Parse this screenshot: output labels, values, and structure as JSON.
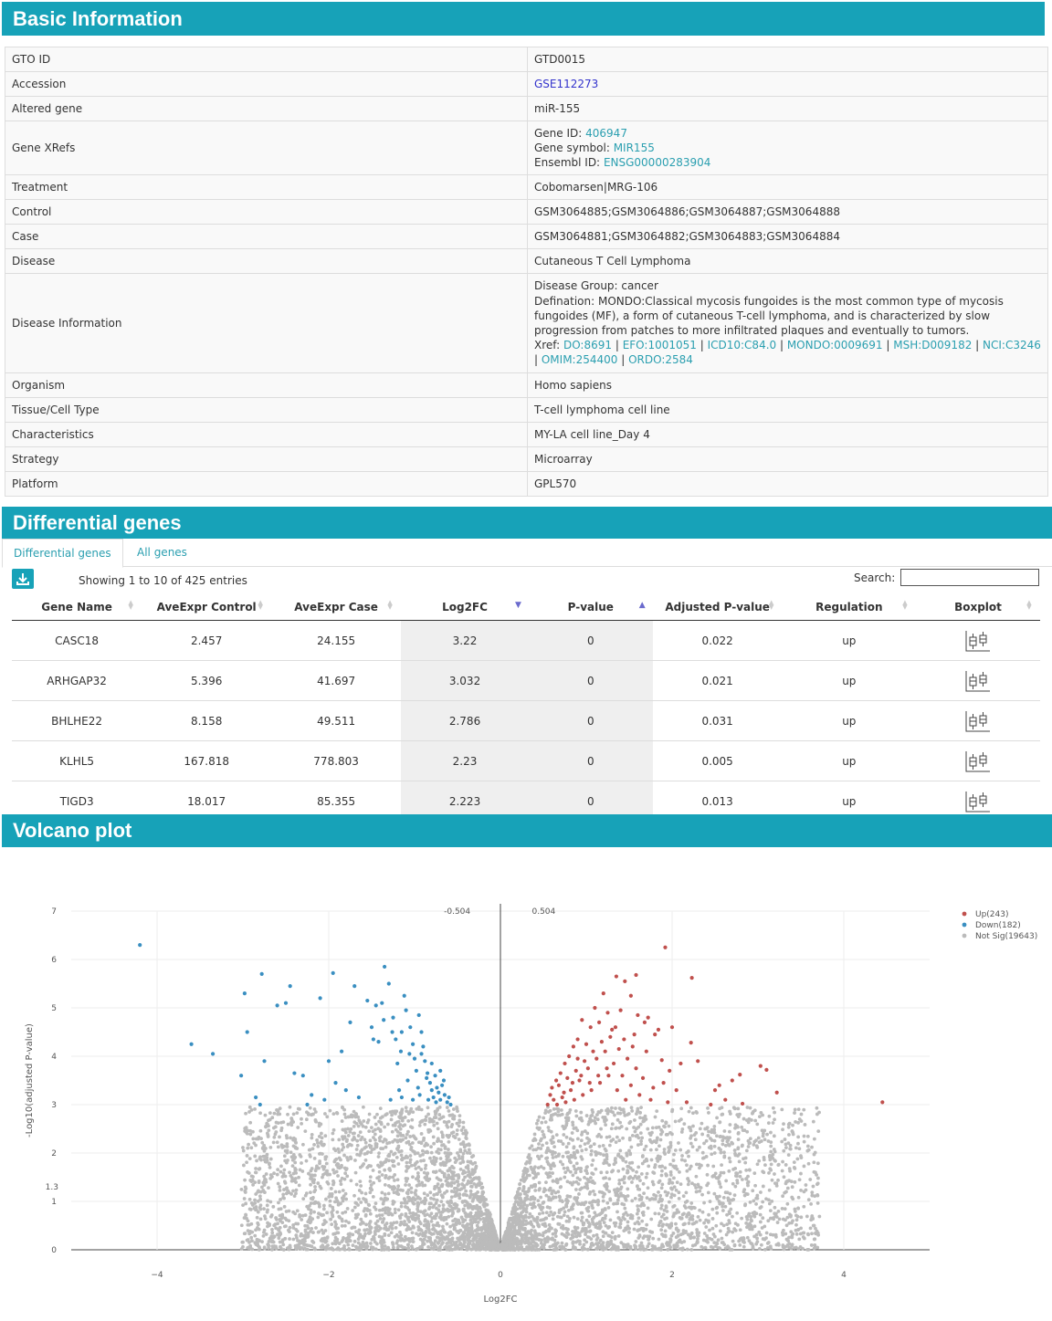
{
  "basic": {
    "title": "Basic Information",
    "rows": [
      {
        "key": "GTO ID",
        "value": "GTD0015"
      },
      {
        "key": "Accession",
        "value": "GSE112273",
        "link": true
      },
      {
        "key": "Altered gene",
        "value": "miR-155"
      },
      {
        "key": "Gene XRefs",
        "gene_id_label": "Gene ID:",
        "gene_id": "406947",
        "gene_symbol_label": "Gene symbol:",
        "gene_symbol": "MIR155",
        "ensembl_label": "Ensembl ID:",
        "ensembl": "ENSG00000283904"
      },
      {
        "key": "Treatment",
        "value": "Cobomarsen|MRG-106"
      },
      {
        "key": "Control",
        "value": "GSM3064885;GSM3064886;GSM3064887;GSM3064888"
      },
      {
        "key": "Case",
        "value": "GSM3064881;GSM3064882;GSM3064883;GSM3064884"
      },
      {
        "key": "Disease",
        "value": "Cutaneous T Cell Lymphoma"
      },
      {
        "key": "Disease Information",
        "group": "Disease Group: cancer",
        "defination_1": "Defination: MONDO:Classical mycosis fungoides is the most common type of mycosis",
        "defination_2": "fungoides (MF), a form of cutaneous T-cell lymphoma, and is characterized by slow",
        "defination_3": "progression from patches to more infiltrated plaques and eventually to tumors.",
        "xref_label": "Xref:",
        "xrefs": [
          "DO:8691",
          "EFO:1001051",
          "ICD10:C84.0",
          "MONDO:0009691",
          "MSH:D009182",
          "NCI:C3246",
          "OMIM:254400",
          "ORDO:2584"
        ]
      },
      {
        "key": "Organism",
        "value": "Homo sapiens"
      },
      {
        "key": "Tissue/Cell Type",
        "value": "T-cell lymphoma cell line"
      },
      {
        "key": "Characteristics",
        "value": "MY-LA cell line_Day 4"
      },
      {
        "key": "Strategy",
        "value": "Microarray"
      },
      {
        "key": "Platform",
        "value": "GPL570"
      }
    ]
  },
  "differential": {
    "title": "Differential genes",
    "tabs": [
      "Differential genes",
      "All genes"
    ],
    "entries_text": "Showing 1 to 10 of 425 entries",
    "search_label": "Search:",
    "search_value": "",
    "columns": [
      "Gene Name",
      "AveExpr Control",
      "AveExpr Case",
      "Log2FC",
      "P-value",
      "Adjusted P-value",
      "Regulation",
      "Boxplot"
    ],
    "rows": [
      [
        "CASC18",
        "2.457",
        "24.155",
        "3.22",
        "0",
        "0.022",
        "up"
      ],
      [
        "ARHGAP32",
        "5.396",
        "41.697",
        "3.032",
        "0",
        "0.021",
        "up"
      ],
      [
        "BHLHE22",
        "8.158",
        "49.511",
        "2.786",
        "0",
        "0.031",
        "up"
      ],
      [
        "KLHL5",
        "167.818",
        "778.803",
        "2.23",
        "0",
        "0.005",
        "up"
      ],
      [
        "TIGD3",
        "18.017",
        "85.355",
        "2.223",
        "0",
        "0.013",
        "up"
      ]
    ]
  },
  "volcano": {
    "title": "Volcano plot"
  },
  "chart_data": {
    "type": "scatter",
    "title": "",
    "xlabel": "Log2FC",
    "ylabel": "-Log10(adjusted P-value)",
    "xlim": [
      -5,
      5
    ],
    "ylim": [
      0,
      7
    ],
    "x_ticks": [
      "−4",
      "−2",
      "0",
      "2",
      "4"
    ],
    "y_ticks": [
      "0",
      "1",
      "2",
      "3",
      "4",
      "5",
      "6",
      "7"
    ],
    "thresholds": {
      "log2fc": [
        -0.504,
        0.504
      ],
      "neg_log10_p": 1.3
    },
    "threshold_labels": {
      "left": "-0.504",
      "right": "0.504",
      "p": "1.3"
    },
    "legend": {
      "position": "top-right",
      "entries": [
        "Up(243)",
        "Down(182)",
        "Not Sig(19643)"
      ]
    },
    "colors": {
      "up": "#c0504d",
      "down": "#3a8fc1",
      "not_sig": "#bbbbbb"
    },
    "series": [
      {
        "name": "Up(243)",
        "points": [
          [
            4.45,
            3.05
          ],
          [
            3.22,
            3.25
          ],
          [
            3.1,
            3.72
          ],
          [
            3.03,
            3.8
          ],
          [
            2.79,
            3.62
          ],
          [
            2.82,
            3.02
          ],
          [
            2.23,
            5.62
          ],
          [
            2.22,
            4.28
          ],
          [
            2.1,
            3.85
          ],
          [
            1.92,
            6.25
          ],
          [
            2.0,
            4.6
          ],
          [
            1.58,
            5.68
          ],
          [
            1.72,
            4.8
          ],
          [
            1.35,
            5.65
          ],
          [
            1.45,
            5.55
          ],
          [
            1.52,
            5.25
          ],
          [
            1.6,
            4.85
          ],
          [
            1.68,
            4.7
          ],
          [
            1.8,
            4.45
          ],
          [
            1.88,
            3.92
          ],
          [
            1.9,
            3.45
          ],
          [
            2.05,
            3.3
          ],
          [
            2.17,
            3.05
          ],
          [
            2.45,
            3.0
          ],
          [
            2.62,
            3.1
          ],
          [
            1.75,
            3.1
          ],
          [
            1.95,
            3.05
          ],
          [
            1.25,
            4.9
          ],
          [
            1.3,
            4.55
          ],
          [
            1.2,
            5.3
          ],
          [
            1.1,
            5.0
          ],
          [
            1.05,
            4.6
          ],
          [
            0.95,
            4.75
          ],
          [
            0.9,
            4.35
          ],
          [
            0.85,
            4.2
          ],
          [
            0.8,
            4.0
          ],
          [
            0.75,
            3.85
          ],
          [
            0.7,
            3.65
          ],
          [
            0.65,
            3.5
          ],
          [
            0.6,
            3.35
          ],
          [
            0.58,
            3.2
          ],
          [
            0.62,
            3.1
          ],
          [
            0.72,
            3.15
          ],
          [
            0.82,
            3.3
          ],
          [
            0.92,
            3.5
          ],
          [
            1.02,
            3.75
          ],
          [
            1.12,
            3.95
          ],
          [
            1.22,
            4.1
          ],
          [
            1.32,
            3.85
          ],
          [
            1.42,
            3.6
          ],
          [
            1.52,
            3.4
          ],
          [
            1.62,
            3.2
          ],
          [
            0.68,
            3.4
          ],
          [
            0.78,
            3.55
          ],
          [
            0.88,
            3.7
          ],
          [
            0.98,
            3.9
          ],
          [
            1.08,
            4.1
          ],
          [
            1.18,
            4.3
          ],
          [
            1.28,
            4.4
          ],
          [
            1.38,
            4.15
          ],
          [
            1.48,
            3.95
          ],
          [
            1.58,
            3.75
          ],
          [
            0.55,
            3.0
          ],
          [
            0.66,
            3.0
          ],
          [
            0.76,
            3.05
          ],
          [
            0.86,
            3.1
          ],
          [
            0.96,
            3.2
          ],
          [
            1.06,
            3.3
          ],
          [
            1.16,
            3.45
          ],
          [
            1.26,
            3.6
          ],
          [
            1.36,
            3.3
          ],
          [
            1.46,
            3.1
          ],
          [
            0.74,
            3.25
          ],
          [
            0.84,
            3.45
          ],
          [
            0.94,
            3.6
          ],
          [
            1.04,
            3.45
          ],
          [
            1.14,
            3.6
          ],
          [
            1.24,
            3.75
          ],
          [
            1.34,
            4.6
          ],
          [
            1.44,
            4.35
          ],
          [
            1.54,
            4.2
          ],
          [
            2.5,
            3.3
          ],
          [
            2.3,
            3.9
          ],
          [
            2.55,
            3.4
          ],
          [
            2.7,
            3.5
          ],
          [
            1.66,
            3.55
          ],
          [
            1.7,
            4.1
          ],
          [
            1.84,
            4.55
          ],
          [
            1.97,
            3.7
          ],
          [
            1.78,
            3.35
          ],
          [
            0.9,
            3.95
          ],
          [
            1.0,
            4.25
          ],
          [
            1.15,
            4.7
          ],
          [
            1.4,
            4.95
          ],
          [
            1.56,
            4.45
          ]
        ]
      },
      {
        "name": "Down(182)",
        "points": [
          [
            -4.2,
            6.3
          ],
          [
            -3.6,
            4.25
          ],
          [
            -3.35,
            4.05
          ],
          [
            -3.02,
            3.6
          ],
          [
            -2.98,
            5.3
          ],
          [
            -2.95,
            4.5
          ],
          [
            -2.85,
            3.15
          ],
          [
            -2.8,
            3.0
          ],
          [
            -2.78,
            5.7
          ],
          [
            -2.75,
            3.9
          ],
          [
            -2.6,
            5.05
          ],
          [
            -2.5,
            5.1
          ],
          [
            -2.45,
            5.45
          ],
          [
            -2.4,
            3.65
          ],
          [
            -2.3,
            3.6
          ],
          [
            -2.25,
            3.0
          ],
          [
            -2.2,
            3.2
          ],
          [
            -2.1,
            5.2
          ],
          [
            -2.05,
            3.1
          ],
          [
            -2.0,
            3.9
          ],
          [
            -1.95,
            5.72
          ],
          [
            -1.92,
            3.45
          ],
          [
            -1.85,
            4.1
          ],
          [
            -1.8,
            3.3
          ],
          [
            -1.75,
            4.7
          ],
          [
            -1.7,
            5.45
          ],
          [
            -1.65,
            3.15
          ],
          [
            -1.55,
            5.15
          ],
          [
            -1.5,
            4.6
          ],
          [
            -1.45,
            5.05
          ],
          [
            -1.42,
            4.3
          ],
          [
            -1.38,
            5.1
          ],
          [
            -1.35,
            5.85
          ],
          [
            -1.3,
            5.5
          ],
          [
            -1.25,
            4.8
          ],
          [
            -1.22,
            4.35
          ],
          [
            -1.2,
            3.85
          ],
          [
            -1.15,
            4.5
          ],
          [
            -1.12,
            5.25
          ],
          [
            -1.1,
            4.95
          ],
          [
            -1.05,
            4.6
          ],
          [
            -1.02,
            4.25
          ],
          [
            -1.0,
            3.95
          ],
          [
            -0.98,
            3.7
          ],
          [
            -0.95,
            4.85
          ],
          [
            -0.92,
            4.5
          ],
          [
            -0.9,
            4.2
          ],
          [
            -0.88,
            3.9
          ],
          [
            -0.85,
            3.65
          ],
          [
            -0.82,
            3.45
          ],
          [
            -0.8,
            3.3
          ],
          [
            -0.78,
            3.15
          ],
          [
            -0.75,
            3.05
          ],
          [
            -0.72,
            3.25
          ],
          [
            -0.7,
            3.1
          ],
          [
            -0.68,
            3.4
          ],
          [
            -0.65,
            3.2
          ],
          [
            -0.62,
            3.05
          ],
          [
            -0.6,
            3.15
          ],
          [
            -0.58,
            3.0
          ],
          [
            -1.18,
            3.3
          ],
          [
            -1.08,
            3.5
          ],
          [
            -0.96,
            3.35
          ],
          [
            -0.86,
            3.55
          ],
          [
            -0.76,
            3.6
          ],
          [
            -0.66,
            3.5
          ],
          [
            -1.28,
            3.1
          ],
          [
            -1.15,
            3.15
          ],
          [
            -1.02,
            3.1
          ],
          [
            -0.94,
            3.2
          ],
          [
            -0.84,
            3.1
          ],
          [
            -0.74,
            3.35
          ],
          [
            -0.7,
            3.7
          ],
          [
            -0.8,
            3.85
          ],
          [
            -1.06,
            4.05
          ],
          [
            -1.16,
            4.1
          ],
          [
            -0.92,
            4.05
          ],
          [
            -1.26,
            4.5
          ],
          [
            -1.36,
            4.75
          ],
          [
            -1.48,
            4.35
          ]
        ]
      }
    ]
  }
}
